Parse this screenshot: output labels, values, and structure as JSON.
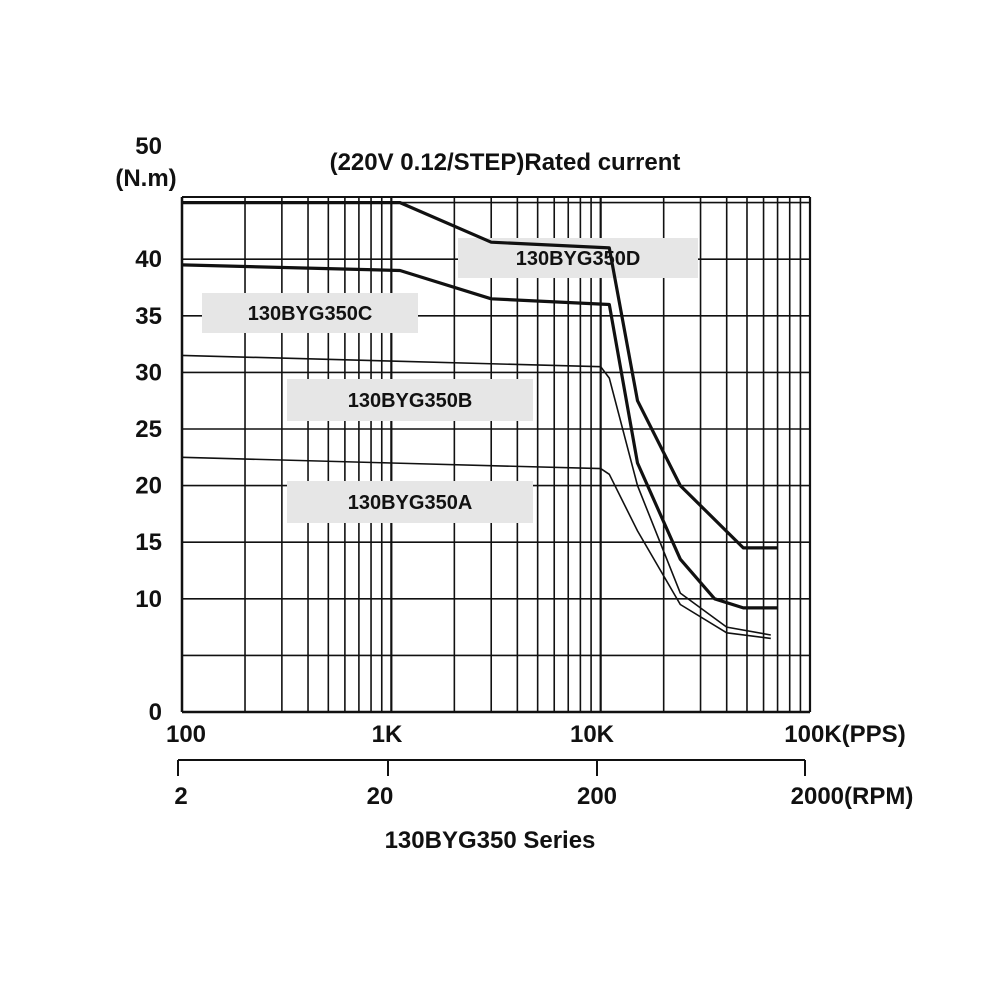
{
  "chart_data": {
    "type": "line",
    "title": "(220V 0.12/STEP)Rated current",
    "ylabel": "(N.m)",
    "caption": "130BYG350 Series",
    "x_scale": "log",
    "xlim": [
      100,
      100000
    ],
    "ylim": [
      0,
      55
    ],
    "yticks": [
      0,
      10,
      15,
      20,
      25,
      30,
      35,
      40,
      50
    ],
    "ytick_labels": [
      "0",
      "10",
      "15",
      "20",
      "25",
      "30",
      "35",
      "40",
      "50"
    ],
    "xticks_pps": [
      100,
      1000,
      10000,
      100000
    ],
    "xtick_labels_pps": [
      "100",
      "1K",
      "10K",
      "100K(PPS)"
    ],
    "xticks_rpm": [
      2,
      20,
      200,
      2000
    ],
    "xtick_labels_rpm": [
      "2",
      "20",
      "200",
      "2000(RPM)"
    ],
    "grid": true,
    "series": [
      {
        "name": "130BYG350D",
        "stroke": "thick",
        "x": [
          100,
          1100,
          3000,
          11000,
          15000,
          24000,
          48000,
          70000
        ],
        "y": [
          45.0,
          45.0,
          41.5,
          41.0,
          27.5,
          20.0,
          14.5,
          14.5
        ]
      },
      {
        "name": "130BYG350C",
        "stroke": "thick",
        "x": [
          100,
          1100,
          3000,
          11000,
          15000,
          24000,
          35000,
          48000,
          70000
        ],
        "y": [
          39.5,
          39.0,
          36.5,
          36.0,
          22.0,
          13.5,
          10.0,
          9.2,
          9.2
        ]
      },
      {
        "name": "130BYG350B",
        "stroke": "thin",
        "x": [
          100,
          1000,
          10000,
          11000,
          15000,
          24000,
          40000,
          65000
        ],
        "y": [
          31.5,
          31.0,
          30.5,
          29.5,
          20.0,
          10.5,
          7.5,
          6.8
        ]
      },
      {
        "name": "130BYG350A",
        "stroke": "thin",
        "x": [
          100,
          1000,
          10000,
          11000,
          15000,
          24000,
          40000,
          65000
        ],
        "y": [
          22.5,
          22.0,
          21.5,
          21.0,
          16.0,
          9.5,
          7.0,
          6.5
        ]
      }
    ],
    "labels": [
      "130BYG350D",
      "130BYG350C",
      "130BYG350B",
      "130BYG350A"
    ],
    "colors": {
      "line": "#111111",
      "grid": "#111111",
      "label_bg": "#e6e6e6"
    }
  }
}
